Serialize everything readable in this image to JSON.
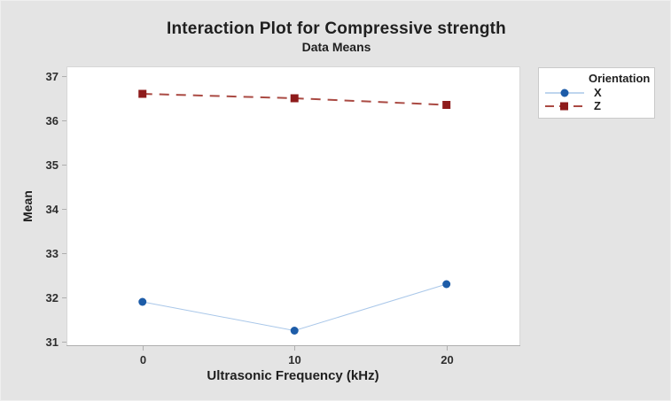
{
  "chart_data": {
    "type": "line",
    "title": "Interaction Plot for Compressive strength",
    "subtitle": "Data Means",
    "xlabel": "Ultrasonic Frequency (kHz)",
    "ylabel": "Mean",
    "legend_title": "Orientation",
    "legend_position": "right-outside-top",
    "grid": false,
    "x": [
      0,
      10,
      20
    ],
    "x_ticks": [
      0,
      10,
      20
    ],
    "y_ticks": [
      31,
      32,
      33,
      34,
      35,
      36,
      37
    ],
    "xlim": [
      -5,
      24.8
    ],
    "ylim": [
      30.92,
      37.22
    ],
    "series": [
      {
        "name": "X",
        "values": [
          31.9,
          31.25,
          32.3
        ],
        "marker": "circle",
        "marker_color": "#1d5ca8",
        "line_color": "#a9c7e9",
        "line_style": "solid"
      },
      {
        "name": "Z",
        "values": [
          36.6,
          36.5,
          36.35
        ],
        "marker": "square",
        "marker_color": "#8e1b1b",
        "line_color": "#aa4a43",
        "line_style": "dashed"
      }
    ]
  },
  "colors": {
    "background": "#e4e4e4",
    "plot_background": "#ffffff",
    "plot_border": "#d7d7d7",
    "axis_line": "#aeaeae",
    "tick_text": "#2e2e2e",
    "title_text": "#1f1f1f",
    "legend_border": "#c9c9c9"
  }
}
